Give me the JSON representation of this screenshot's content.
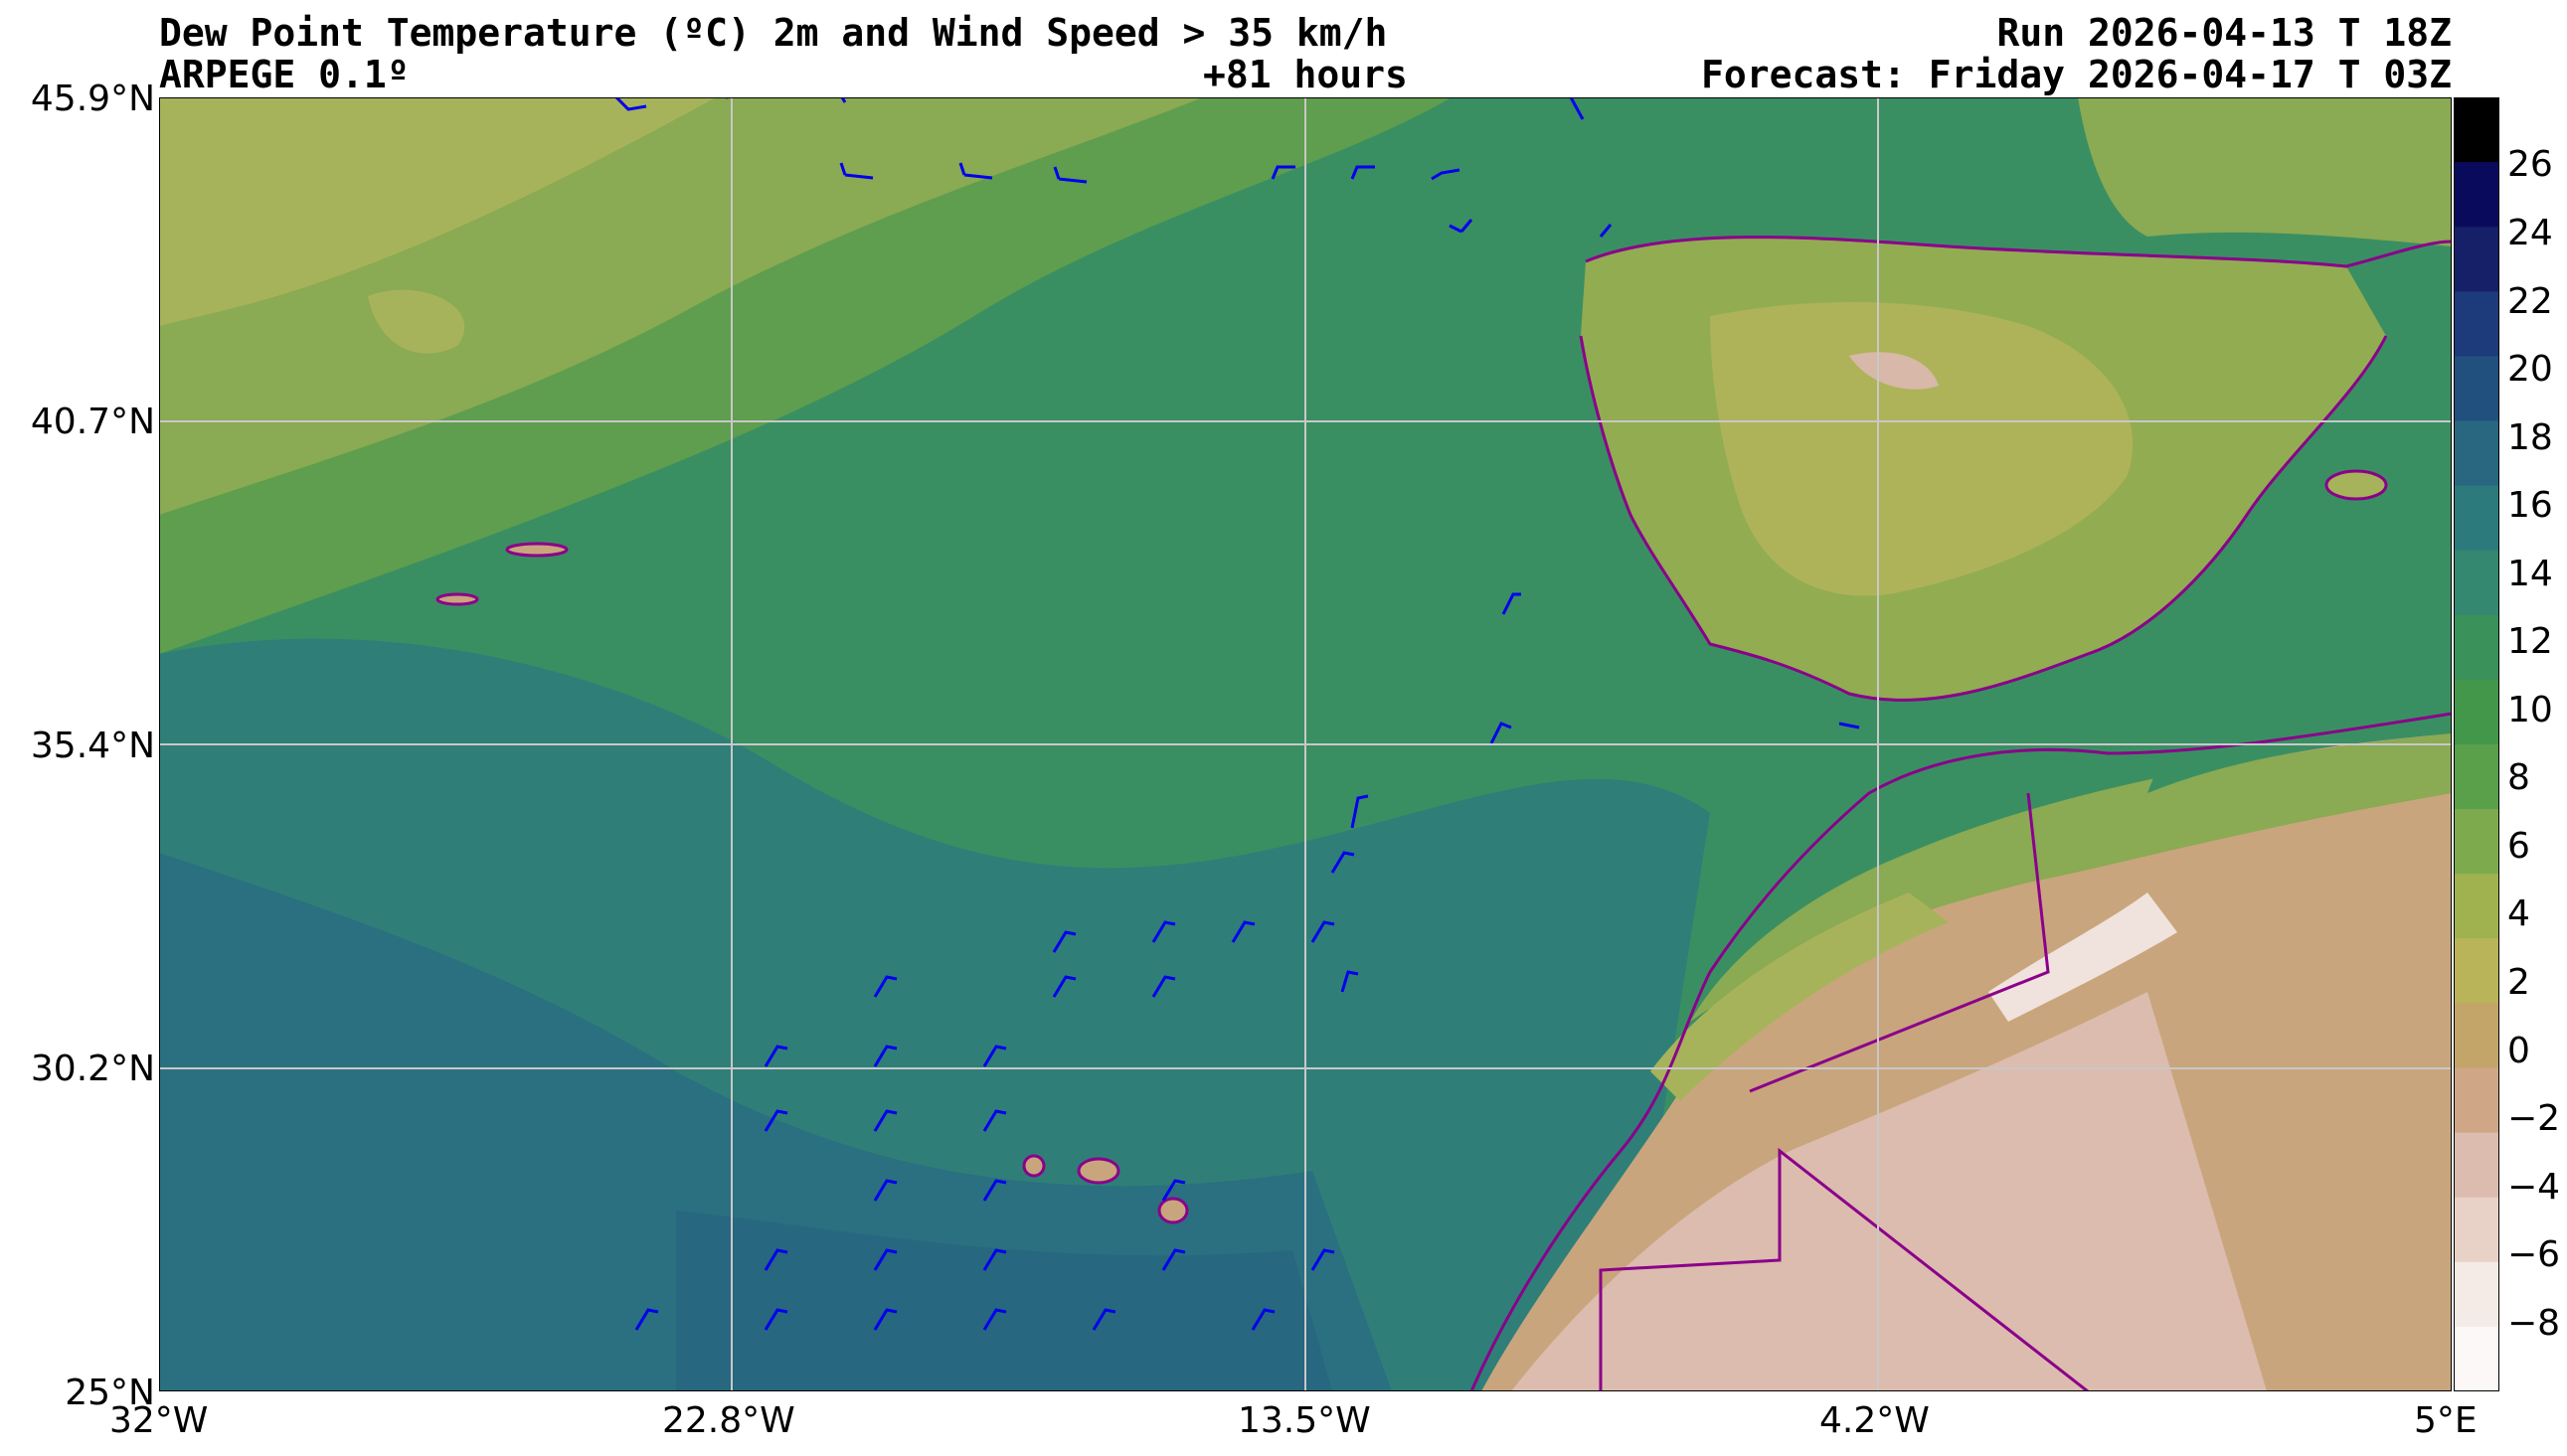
{
  "header": {
    "title_left": "Dew Point Temperature (ºC) 2m and Wind Speed > 35 km/h",
    "subtitle_left": "ARPEGE 0.1º",
    "forecast_hours": "+81 hours",
    "run": "Run 2026-04-13 T 18Z",
    "forecast": "Forecast: Friday 2026-04-17 T 03Z"
  },
  "axes": {
    "x_ticks": [
      "32°W",
      "22.8°W",
      "13.5°W",
      "4.2°W",
      "5°E"
    ],
    "y_ticks": [
      "45.9°N",
      "40.7°N",
      "35.4°N",
      "30.2°N",
      "25°N"
    ],
    "xlim": [
      -32,
      5
    ],
    "ylim": [
      25,
      45.9
    ],
    "grid": true
  },
  "colorbar": {
    "labels": [
      "26",
      "24",
      "22",
      "20",
      "18",
      "16",
      "14",
      "12",
      "10",
      "8",
      "6",
      "4",
      "2",
      "0",
      "−2",
      "−4",
      "−6",
      "−8"
    ],
    "range": [
      -10,
      28
    ],
    "colors": [
      "#000000",
      "#0a0a5c",
      "#152068",
      "#1d3a7a",
      "#22507e",
      "#28677f",
      "#2c7a7b",
      "#33886f",
      "#3b915a",
      "#43974a",
      "#5aa04a",
      "#7eaa4e",
      "#a0b24f",
      "#b9b45a",
      "#c3a56a",
      "#cfa786",
      "#dcbcae",
      "#e8d2c8",
      "#f4eae6",
      "#fcf8f8"
    ]
  },
  "map": {
    "border_color": "#8b008b",
    "barb_color": "#0000ee"
  }
}
